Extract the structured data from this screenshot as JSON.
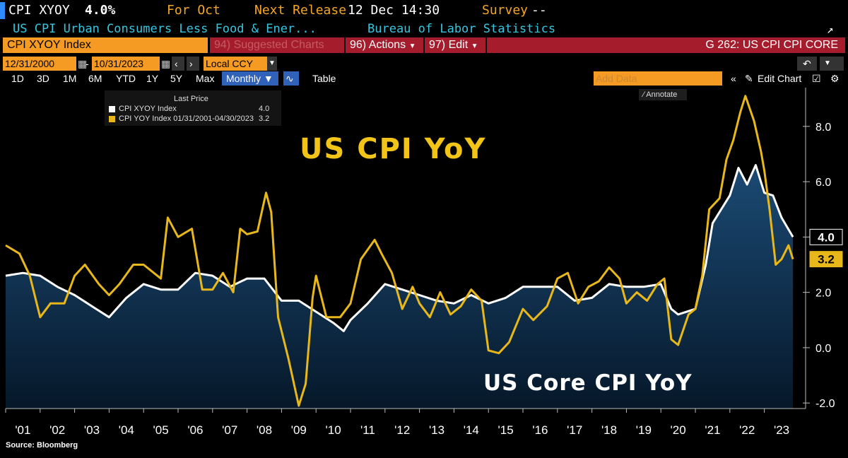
{
  "header": {
    "ticker": "CPI XYOY",
    "value": "4.0%",
    "for_label": "For Oct",
    "next_release_label": "Next Release",
    "next_release_value": "12 Dec 14:30",
    "survey_label": "Survey",
    "survey_value": "--",
    "description": "US CPI Urban Consumers Less Food & Ener...",
    "source_org": "Bureau of Labor Statistics"
  },
  "toolbar": {
    "index_field": "CPI XYOY Index",
    "suggested_charts": "94) Suggested Charts",
    "actions": "96) Actions",
    "edit": "97) Edit",
    "chart_id": "G 262: US CPI CPI CORE",
    "start_date": "12/31/2000",
    "end_date": "10/31/2023",
    "date_sep": "-",
    "currency": "Local CCY",
    "periods": [
      "1D",
      "3D",
      "1M",
      "6M",
      "YTD",
      "1Y",
      "5Y",
      "Max"
    ],
    "frequency": "Monthly ▼",
    "table": "Table",
    "add_data_placeholder": "Add Data",
    "edit_chart": "Edit Chart",
    "annotate": "Annotate"
  },
  "legend": {
    "header": "Last Price",
    "items": [
      {
        "label": "CPI XYOY Index",
        "value": "4.0",
        "color": "#ffffff"
      },
      {
        "label": "CPI YOY Index 01/31/2001-04/30/2023",
        "value": "3.2",
        "color": "#e8b81a"
      }
    ]
  },
  "footer": {
    "source": "Source: Bloomberg"
  },
  "colors": {
    "core": "#ffffff",
    "headline": "#e8b81a",
    "fill_top": "#1b4a74",
    "fill_bottom": "#071a2c",
    "accent": "#f5a623",
    "header_red": "#a51d2d"
  },
  "chart_data": {
    "type": "line",
    "annotations": [
      "US CPI YoY",
      "US Core CPI YoY"
    ],
    "x_tick_labels": [
      "'01",
      "'02",
      "'03",
      "'04",
      "'05",
      "'06",
      "'07",
      "'08",
      "'09",
      "'10",
      "'11",
      "'12",
      "'13",
      "'14",
      "'15",
      "'16",
      "'17",
      "'18",
      "'19",
      "'20",
      "'21",
      "'22",
      "'23"
    ],
    "y_tick_labels": [
      "-2.0",
      "0.0",
      "2.0",
      "4.0",
      "6.0",
      "8.0"
    ],
    "ylim": [
      -2.2,
      9.4
    ],
    "xlim": [
      2001.0,
      2023.95
    ],
    "grid": false,
    "legend_position": "top-left",
    "last_value_labels": [
      "4.0",
      "3.2"
    ],
    "series": [
      {
        "name": "CPI XYOY Index",
        "color": "#ffffff",
        "area_fill": true,
        "points": [
          [
            2001.0,
            2.6
          ],
          [
            2001.5,
            2.7
          ],
          [
            2002.0,
            2.6
          ],
          [
            2002.5,
            2.2
          ],
          [
            2003.0,
            1.9
          ],
          [
            2003.5,
            1.5
          ],
          [
            2004.0,
            1.1
          ],
          [
            2004.5,
            1.8
          ],
          [
            2005.0,
            2.3
          ],
          [
            2005.5,
            2.1
          ],
          [
            2006.0,
            2.1
          ],
          [
            2006.5,
            2.7
          ],
          [
            2007.0,
            2.6
          ],
          [
            2007.5,
            2.2
          ],
          [
            2008.0,
            2.5
          ],
          [
            2008.5,
            2.5
          ],
          [
            2009.0,
            1.7
          ],
          [
            2009.5,
            1.7
          ],
          [
            2010.0,
            1.3
          ],
          [
            2010.5,
            0.9
          ],
          [
            2010.8,
            0.6
          ],
          [
            2011.0,
            1.0
          ],
          [
            2011.5,
            1.6
          ],
          [
            2012.0,
            2.3
          ],
          [
            2012.5,
            2.1
          ],
          [
            2013.0,
            1.9
          ],
          [
            2013.5,
            1.7
          ],
          [
            2014.0,
            1.6
          ],
          [
            2014.5,
            1.9
          ],
          [
            2015.0,
            1.6
          ],
          [
            2015.5,
            1.8
          ],
          [
            2016.0,
            2.2
          ],
          [
            2016.5,
            2.2
          ],
          [
            2017.0,
            2.2
          ],
          [
            2017.5,
            1.7
          ],
          [
            2018.0,
            1.8
          ],
          [
            2018.5,
            2.3
          ],
          [
            2019.0,
            2.2
          ],
          [
            2019.5,
            2.2
          ],
          [
            2020.0,
            2.3
          ],
          [
            2020.3,
            1.4
          ],
          [
            2020.5,
            1.2
          ],
          [
            2021.0,
            1.4
          ],
          [
            2021.3,
            3.0
          ],
          [
            2021.5,
            4.5
          ],
          [
            2022.0,
            5.5
          ],
          [
            2022.25,
            6.5
          ],
          [
            2022.5,
            5.9
          ],
          [
            2022.75,
            6.6
          ],
          [
            2023.0,
            5.6
          ],
          [
            2023.25,
            5.5
          ],
          [
            2023.5,
            4.7
          ],
          [
            2023.83,
            4.0
          ]
        ]
      },
      {
        "name": "CPI YOY Index 01/31/2001-04/30/2023",
        "color": "#e8b81a",
        "area_fill": false,
        "points": [
          [
            2001.0,
            3.7
          ],
          [
            2001.4,
            3.4
          ],
          [
            2001.7,
            2.6
          ],
          [
            2002.0,
            1.1
          ],
          [
            2002.3,
            1.6
          ],
          [
            2002.7,
            1.6
          ],
          [
            2003.0,
            2.6
          ],
          [
            2003.3,
            3.0
          ],
          [
            2003.7,
            2.3
          ],
          [
            2004.0,
            1.9
          ],
          [
            2004.3,
            2.3
          ],
          [
            2004.7,
            3.0
          ],
          [
            2005.0,
            3.0
          ],
          [
            2005.5,
            2.5
          ],
          [
            2005.7,
            4.7
          ],
          [
            2006.0,
            4.0
          ],
          [
            2006.4,
            4.3
          ],
          [
            2006.7,
            2.1
          ],
          [
            2007.0,
            2.1
          ],
          [
            2007.3,
            2.7
          ],
          [
            2007.6,
            2.0
          ],
          [
            2007.8,
            4.3
          ],
          [
            2008.0,
            4.1
          ],
          [
            2008.3,
            4.2
          ],
          [
            2008.55,
            5.6
          ],
          [
            2008.7,
            4.9
          ],
          [
            2008.9,
            1.1
          ],
          [
            2009.2,
            -0.4
          ],
          [
            2009.5,
            -2.1
          ],
          [
            2009.7,
            -1.3
          ],
          [
            2009.9,
            1.8
          ],
          [
            2010.0,
            2.6
          ],
          [
            2010.3,
            1.1
          ],
          [
            2010.7,
            1.1
          ],
          [
            2011.0,
            1.6
          ],
          [
            2011.3,
            3.2
          ],
          [
            2011.7,
            3.9
          ],
          [
            2011.9,
            3.4
          ],
          [
            2012.2,
            2.7
          ],
          [
            2012.5,
            1.4
          ],
          [
            2012.8,
            2.2
          ],
          [
            2013.0,
            1.6
          ],
          [
            2013.3,
            1.1
          ],
          [
            2013.6,
            2.0
          ],
          [
            2013.9,
            1.2
          ],
          [
            2014.2,
            1.5
          ],
          [
            2014.5,
            2.1
          ],
          [
            2014.8,
            1.7
          ],
          [
            2015.0,
            -0.1
          ],
          [
            2015.3,
            -0.2
          ],
          [
            2015.6,
            0.2
          ],
          [
            2016.0,
            1.4
          ],
          [
            2016.3,
            1.0
          ],
          [
            2016.7,
            1.5
          ],
          [
            2017.0,
            2.5
          ],
          [
            2017.3,
            2.7
          ],
          [
            2017.6,
            1.6
          ],
          [
            2017.9,
            2.2
          ],
          [
            2018.2,
            2.4
          ],
          [
            2018.5,
            2.9
          ],
          [
            2018.8,
            2.5
          ],
          [
            2019.0,
            1.6
          ],
          [
            2019.3,
            2.0
          ],
          [
            2019.6,
            1.7
          ],
          [
            2019.9,
            2.3
          ],
          [
            2020.1,
            2.5
          ],
          [
            2020.3,
            0.3
          ],
          [
            2020.5,
            0.1
          ],
          [
            2020.8,
            1.2
          ],
          [
            2021.0,
            1.4
          ],
          [
            2021.2,
            2.6
          ],
          [
            2021.4,
            5.0
          ],
          [
            2021.7,
            5.4
          ],
          [
            2021.9,
            6.8
          ],
          [
            2022.1,
            7.5
          ],
          [
            2022.3,
            8.5
          ],
          [
            2022.45,
            9.1
          ],
          [
            2022.7,
            8.2
          ],
          [
            2022.9,
            7.1
          ],
          [
            2023.0,
            6.4
          ],
          [
            2023.15,
            5.0
          ],
          [
            2023.33,
            3.0
          ],
          [
            2023.5,
            3.2
          ],
          [
            2023.7,
            3.7
          ],
          [
            2023.83,
            3.2
          ]
        ]
      }
    ]
  }
}
